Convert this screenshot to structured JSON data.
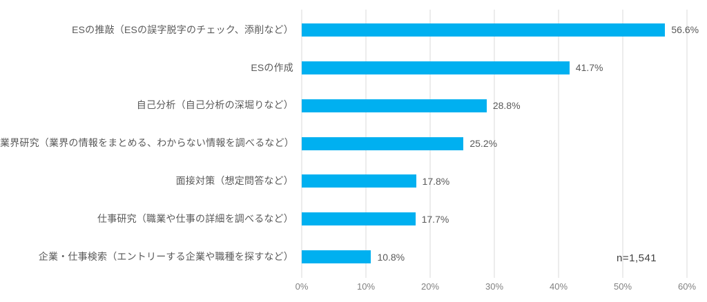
{
  "chart_data": {
    "type": "bar",
    "orientation": "horizontal",
    "categories": [
      "ESの推敲（ESの誤字脱字のチェック、添削など）",
      "ESの作成",
      "自己分析（自己分析の深堀りなど）",
      "業界研究（業界の情報をまとめる、わからない情報を調べるなど）",
      "面接対策（想定問答など）",
      "仕事研究（職業や仕事の詳細を調べるなど）",
      "企業・仕事検索（エントリーする企業や職種を探すなど）"
    ],
    "values": [
      56.6,
      41.7,
      28.8,
      25.2,
      17.8,
      17.7,
      10.8
    ],
    "value_labels": [
      "56.6%",
      "41.7%",
      "28.8%",
      "25.2%",
      "17.8%",
      "17.7%",
      "10.8%"
    ],
    "x_ticks": [
      "0%",
      "10%",
      "20%",
      "30%",
      "40%",
      "50%",
      "60%"
    ],
    "x_tick_values": [
      0,
      10,
      20,
      30,
      40,
      50,
      60
    ],
    "xlim": [
      0,
      60
    ],
    "grid": true,
    "annotation": "n=1,541",
    "colors": {
      "bar": "#00b0f0",
      "gridline": "#d9d9d9",
      "label_text": "#595959",
      "axis_text": "#808080",
      "annotation_text": "#404040"
    }
  }
}
